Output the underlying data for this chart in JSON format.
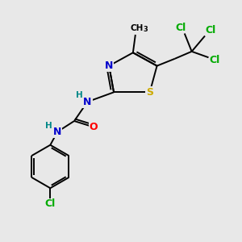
{
  "background_color": "#e8e8e8",
  "bond_color": "#000000",
  "atom_colors": {
    "N": "#0000cc",
    "S": "#ccaa00",
    "O": "#ff0000",
    "Cl": "#00aa00",
    "C": "#000000",
    "H": "#008888"
  },
  "figsize": [
    3.0,
    3.0
  ],
  "dpi": 100,
  "lw": 1.4,
  "fs": 9.0,
  "fs_small": 7.5
}
